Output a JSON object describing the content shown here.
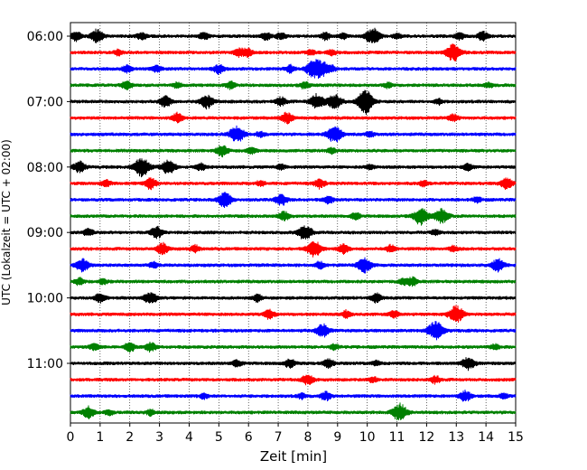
{
  "chart_data": {
    "type": "line",
    "title": "",
    "xlabel": "Zeit  [min]",
    "ylabel": "UTC (Lokalzeit = UTC + 02:00)",
    "xlim": [
      0,
      15
    ],
    "x_ticks": [
      "0",
      "1",
      "2",
      "3",
      "4",
      "5",
      "6",
      "7",
      "8",
      "9",
      "10",
      "11",
      "12",
      "13",
      "14",
      "15"
    ],
    "y_ticks": [
      "06:00",
      "07:00",
      "08:00",
      "09:00",
      "10:00",
      "11:00"
    ],
    "grid": "vertical dotted lines at each minute",
    "colors": [
      "#000000",
      "#ff0000",
      "#0000ff",
      "#008000"
    ],
    "series": [
      {
        "start": "06:00",
        "color": "#000000",
        "events": [
          [
            0.2,
            0.5
          ],
          [
            0.9,
            0.7
          ],
          [
            2.4,
            0.4
          ],
          [
            4.5,
            0.4
          ],
          [
            6.6,
            0.4
          ],
          [
            7.1,
            0.4
          ],
          [
            8.6,
            0.4
          ],
          [
            9.2,
            0.3
          ],
          [
            10.1,
            0.6
          ],
          [
            10.3,
            0.5
          ],
          [
            11.0,
            0.3
          ],
          [
            13.1,
            0.4
          ],
          [
            13.9,
            0.5
          ]
        ]
      },
      {
        "start": "06:15",
        "color": "#ff0000",
        "events": [
          [
            1.6,
            0.3
          ],
          [
            5.7,
            0.5
          ],
          [
            6.0,
            0.4
          ],
          [
            8.1,
            0.3
          ],
          [
            8.8,
            0.3
          ],
          [
            12.9,
            0.9
          ]
        ]
      },
      {
        "start": "06:30",
        "color": "#0000ff",
        "events": [
          [
            1.9,
            0.4
          ],
          [
            2.9,
            0.4
          ],
          [
            5.0,
            0.5
          ],
          [
            7.4,
            0.4
          ],
          [
            8.1,
            0.6
          ],
          [
            8.4,
            1.0
          ],
          [
            8.8,
            0.3
          ]
        ]
      },
      {
        "start": "06:45",
        "color": "#008000",
        "events": [
          [
            1.9,
            0.5
          ],
          [
            3.6,
            0.3
          ],
          [
            5.4,
            0.4
          ],
          [
            7.9,
            0.4
          ],
          [
            10.7,
            0.3
          ],
          [
            14.1,
            0.3
          ]
        ]
      },
      {
        "start": "07:00",
        "color": "#000000",
        "events": [
          [
            3.2,
            0.6
          ],
          [
            4.6,
            0.7
          ],
          [
            7.1,
            0.5
          ],
          [
            8.3,
            0.8
          ],
          [
            8.9,
            0.8
          ],
          [
            9.9,
            1.0
          ],
          [
            10.0,
            0.5
          ],
          [
            12.4,
            0.3
          ]
        ]
      },
      {
        "start": "07:15",
        "color": "#ff0000",
        "events": [
          [
            3.6,
            0.5
          ],
          [
            7.3,
            0.6
          ],
          [
            12.9,
            0.4
          ]
        ]
      },
      {
        "start": "07:30",
        "color": "#0000ff",
        "events": [
          [
            5.6,
            0.9
          ],
          [
            6.4,
            0.3
          ],
          [
            8.9,
            0.9
          ],
          [
            10.1,
            0.3
          ]
        ]
      },
      {
        "start": "07:45",
        "color": "#008000",
        "events": [
          [
            5.1,
            0.6
          ],
          [
            6.1,
            0.4
          ],
          [
            8.8,
            0.3
          ]
        ]
      },
      {
        "start": "08:00",
        "color": "#000000",
        "events": [
          [
            0.3,
            0.6
          ],
          [
            2.4,
            1.0
          ],
          [
            3.3,
            0.8
          ],
          [
            4.4,
            0.4
          ],
          [
            7.1,
            0.3
          ],
          [
            10.1,
            0.3
          ],
          [
            13.4,
            0.4
          ]
        ]
      },
      {
        "start": "08:15",
        "color": "#ff0000",
        "events": [
          [
            1.2,
            0.4
          ],
          [
            2.7,
            0.6
          ],
          [
            6.4,
            0.3
          ],
          [
            8.4,
            0.5
          ],
          [
            11.9,
            0.3
          ],
          [
            14.7,
            0.6
          ]
        ]
      },
      {
        "start": "08:30",
        "color": "#0000ff",
        "events": [
          [
            5.2,
            0.8
          ],
          [
            7.1,
            0.6
          ],
          [
            8.7,
            0.4
          ],
          [
            13.7,
            0.3
          ]
        ]
      },
      {
        "start": "08:45",
        "color": "#008000",
        "events": [
          [
            7.2,
            0.5
          ],
          [
            9.6,
            0.4
          ],
          [
            11.8,
            0.9
          ],
          [
            12.5,
            0.8
          ]
        ]
      },
      {
        "start": "09:00",
        "color": "#000000",
        "events": [
          [
            0.6,
            0.4
          ],
          [
            2.9,
            0.6
          ],
          [
            7.9,
            0.8
          ],
          [
            12.3,
            0.3
          ]
        ]
      },
      {
        "start": "09:15",
        "color": "#ff0000",
        "events": [
          [
            3.1,
            0.6
          ],
          [
            4.2,
            0.4
          ],
          [
            8.2,
            0.9
          ],
          [
            9.2,
            0.5
          ],
          [
            10.8,
            0.4
          ],
          [
            12.9,
            0.3
          ]
        ]
      },
      {
        "start": "09:30",
        "color": "#0000ff",
        "events": [
          [
            0.4,
            0.7
          ],
          [
            2.8,
            0.3
          ],
          [
            8.4,
            0.4
          ],
          [
            9.9,
            0.8
          ],
          [
            14.4,
            0.7
          ]
        ]
      },
      {
        "start": "09:45",
        "color": "#008000",
        "events": [
          [
            0.3,
            0.4
          ],
          [
            1.1,
            0.3
          ],
          [
            11.2,
            0.3
          ],
          [
            11.5,
            0.5
          ]
        ]
      },
      {
        "start": "10:00",
        "color": "#000000",
        "events": [
          [
            1.0,
            0.5
          ],
          [
            2.6,
            0.4
          ],
          [
            2.8,
            0.4
          ],
          [
            6.3,
            0.4
          ],
          [
            10.3,
            0.5
          ]
        ]
      },
      {
        "start": "10:15",
        "color": "#ff0000",
        "events": [
          [
            6.7,
            0.5
          ],
          [
            9.3,
            0.4
          ],
          [
            10.9,
            0.4
          ],
          [
            13.0,
            0.9
          ]
        ]
      },
      {
        "start": "10:30",
        "color": "#0000ff",
        "events": [
          [
            8.5,
            0.7
          ],
          [
            12.3,
            1.0
          ]
        ]
      },
      {
        "start": "10:45",
        "color": "#008000",
        "events": [
          [
            0.8,
            0.4
          ],
          [
            2.0,
            0.5
          ],
          [
            2.7,
            0.5
          ],
          [
            8.9,
            0.3
          ],
          [
            14.3,
            0.3
          ]
        ]
      },
      {
        "start": "11:00",
        "color": "#000000",
        "events": [
          [
            5.6,
            0.4
          ],
          [
            7.4,
            0.5
          ],
          [
            8.7,
            0.5
          ],
          [
            10.3,
            0.3
          ],
          [
            13.4,
            0.7
          ]
        ]
      },
      {
        "start": "11:15",
        "color": "#ff0000",
        "events": [
          [
            8.0,
            0.6
          ],
          [
            10.2,
            0.3
          ],
          [
            12.3,
            0.4
          ]
        ]
      },
      {
        "start": "11:30",
        "color": "#0000ff",
        "events": [
          [
            4.5,
            0.3
          ],
          [
            7.8,
            0.3
          ],
          [
            8.6,
            0.5
          ],
          [
            13.3,
            0.6
          ],
          [
            14.6,
            0.3
          ]
        ]
      },
      {
        "start": "11:45",
        "color": "#008000",
        "events": [
          [
            0.6,
            0.6
          ],
          [
            1.3,
            0.3
          ],
          [
            2.7,
            0.3
          ],
          [
            11.1,
            0.9
          ]
        ]
      }
    ]
  }
}
